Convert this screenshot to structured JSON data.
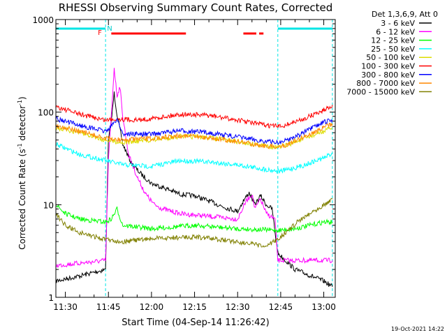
{
  "chart_data": {
    "type": "line",
    "title": "RHESSI Observing Summary Count Rates, Corrected",
    "xlabel": "Start Time (04-Sep-14 11:26:42)",
    "ylabel_main": "Corrected Count Rate (s",
    "ylabel_sup1": "-1",
    "ylabel_mid": " detector",
    "ylabel_sup2": "-1",
    "ylabel_end": ")",
    "yscale": "log",
    "ylim": [
      1,
      1000
    ],
    "xlim": [
      "11:26:42",
      "13:04:00"
    ],
    "grid": false,
    "legend_position": "right",
    "legend_header": "Det 1,3,6,9, Att 0",
    "x_ticks": [
      "11:30",
      "11:45",
      "12:00",
      "12:15",
      "12:30",
      "12:45",
      "13:00"
    ],
    "y_ticks": [
      "1",
      "10",
      "100",
      "1000"
    ],
    "timestamp": "19-Oct-2021 14:22",
    "flag_labels": {
      "f": "F",
      "n": "N"
    },
    "night_intervals": [
      [
        "11:26:42",
        "11:44:00"
      ],
      [
        "12:44:00",
        "13:03:00"
      ]
    ],
    "flare_intervals": [
      [
        "11:46:00",
        "12:12:00"
      ],
      [
        "12:32:00",
        "12:36:30"
      ],
      [
        "12:37:30",
        "12:39:00"
      ]
    ],
    "series": [
      {
        "name": "3 - 6 keV",
        "color": "#000000",
        "points": [
          [
            "11:26:42",
            1.5
          ],
          [
            "11:35",
            1.7
          ],
          [
            "11:44",
            2
          ],
          [
            "11:45",
            50
          ],
          [
            "11:46",
            80
          ],
          [
            "11:47",
            160
          ],
          [
            "11:48",
            95
          ],
          [
            "11:50",
            45
          ],
          [
            "11:53",
            28
          ],
          [
            "11:56",
            22
          ],
          [
            "12:00",
            17
          ],
          [
            "12:05",
            15
          ],
          [
            "12:10",
            13
          ],
          [
            "12:15",
            12.5
          ],
          [
            "12:20",
            11
          ],
          [
            "12:25",
            9.5
          ],
          [
            "12:30",
            8.5
          ],
          [
            "12:32",
            11
          ],
          [
            "12:34",
            13.5
          ],
          [
            "12:36",
            10
          ],
          [
            "12:38",
            12.5
          ],
          [
            "12:40",
            10
          ],
          [
            "12:42",
            9
          ],
          [
            "12:44",
            3
          ],
          [
            "12:50",
            2
          ],
          [
            "13:00",
            1.5
          ],
          [
            "13:03",
            1.3
          ]
        ]
      },
      {
        "name": "6 - 12 keV",
        "color": "#ff00ff",
        "points": [
          [
            "11:26:42",
            2.2
          ],
          [
            "11:44",
            2.5
          ],
          [
            "11:45",
            30
          ],
          [
            "11:46",
            90
          ],
          [
            "11:47",
            300
          ],
          [
            "11:48",
            150
          ],
          [
            "11:49",
            190
          ],
          [
            "11:50",
            90
          ],
          [
            "11:52",
            35
          ],
          [
            "11:55",
            20
          ],
          [
            "11:58",
            13
          ],
          [
            "12:01",
            10
          ],
          [
            "12:04",
            9
          ],
          [
            "12:07",
            8.5
          ],
          [
            "12:10",
            8
          ],
          [
            "12:20",
            7.5
          ],
          [
            "12:30",
            7
          ],
          [
            "12:33",
            11
          ],
          [
            "12:35",
            13
          ],
          [
            "12:36",
            9
          ],
          [
            "12:38",
            11.5
          ],
          [
            "12:40",
            8
          ],
          [
            "12:43",
            7
          ],
          [
            "12:44",
            2.5
          ],
          [
            "13:03",
            2.5
          ]
        ]
      },
      {
        "name": "12 - 25 keV",
        "color": "#00ff00",
        "points": [
          [
            "11:26:42",
            10
          ],
          [
            "11:30",
            8
          ],
          [
            "11:35",
            7
          ],
          [
            "11:44",
            6.5
          ],
          [
            "11:46",
            7
          ],
          [
            "11:48",
            9
          ],
          [
            "11:50",
            6
          ],
          [
            "12:00",
            5.5
          ],
          [
            "12:15",
            6
          ],
          [
            "12:30",
            5.5
          ],
          [
            "12:44",
            5.3
          ],
          [
            "12:50",
            5.5
          ],
          [
            "13:00",
            6.5
          ],
          [
            "13:03",
            6.5
          ]
        ]
      },
      {
        "name": "25 - 50 keV",
        "color": "#00ffff",
        "points": [
          [
            "11:26:42",
            45
          ],
          [
            "11:35",
            35
          ],
          [
            "11:44",
            30
          ],
          [
            "11:50",
            27
          ],
          [
            "12:00",
            26
          ],
          [
            "12:10",
            30
          ],
          [
            "12:20",
            29
          ],
          [
            "12:30",
            27
          ],
          [
            "12:40",
            24
          ],
          [
            "12:45",
            23
          ],
          [
            "12:52",
            26
          ],
          [
            "13:00",
            32
          ],
          [
            "13:03",
            36
          ]
        ]
      },
      {
        "name": "50 - 100 keV",
        "color": "#dddd00",
        "points": [
          [
            "11:26:42",
            68
          ],
          [
            "11:35",
            60
          ],
          [
            "11:44",
            50
          ],
          [
            "11:50",
            47
          ],
          [
            "12:00",
            50
          ],
          [
            "12:10",
            55
          ],
          [
            "12:20",
            53
          ],
          [
            "12:30",
            48
          ],
          [
            "12:40",
            43
          ],
          [
            "12:45",
            42
          ],
          [
            "12:52",
            50
          ],
          [
            "13:00",
            62
          ],
          [
            "13:03",
            68
          ]
        ]
      },
      {
        "name": "100 - 300 keV",
        "color": "#ff0000",
        "points": [
          [
            "11:26:42",
            115
          ],
          [
            "11:35",
            95
          ],
          [
            "11:44",
            82
          ],
          [
            "11:48",
            85
          ],
          [
            "11:55",
            82
          ],
          [
            "12:00",
            85
          ],
          [
            "12:10",
            95
          ],
          [
            "12:20",
            92
          ],
          [
            "12:30",
            82
          ],
          [
            "12:40",
            72
          ],
          [
            "12:45",
            70
          ],
          [
            "12:52",
            82
          ],
          [
            "13:00",
            105
          ],
          [
            "13:03",
            120
          ]
        ]
      },
      {
        "name": "300 - 800 keV",
        "color": "#0000ff",
        "points": [
          [
            "11:26:42",
            85
          ],
          [
            "11:35",
            72
          ],
          [
            "11:44",
            62
          ],
          [
            "11:46",
            70
          ],
          [
            "11:48",
            85
          ],
          [
            "11:50",
            58
          ],
          [
            "12:00",
            58
          ],
          [
            "12:10",
            63
          ],
          [
            "12:20",
            60
          ],
          [
            "12:30",
            54
          ],
          [
            "12:40",
            48
          ],
          [
            "12:45",
            47
          ],
          [
            "12:52",
            58
          ],
          [
            "13:00",
            78
          ],
          [
            "13:03",
            82
          ]
        ]
      },
      {
        "name": "800 - 7000 keV",
        "color": "#ff8800",
        "points": [
          [
            "11:26:42",
            72
          ],
          [
            "11:35",
            62
          ],
          [
            "11:44",
            52
          ],
          [
            "11:50",
            50
          ],
          [
            "12:00",
            52
          ],
          [
            "12:10",
            56
          ],
          [
            "12:20",
            53
          ],
          [
            "12:30",
            48
          ],
          [
            "12:40",
            43
          ],
          [
            "12:45",
            42
          ],
          [
            "12:52",
            52
          ],
          [
            "13:00",
            68
          ],
          [
            "13:03",
            75
          ]
        ]
      },
      {
        "name": "7000 - 15000 keV",
        "color": "#808000",
        "points": [
          [
            "11:26:42",
            8
          ],
          [
            "11:30",
            6
          ],
          [
            "11:35",
            5
          ],
          [
            "11:44",
            4.2
          ],
          [
            "11:50",
            4
          ],
          [
            "12:00",
            4.3
          ],
          [
            "12:15",
            4.5
          ],
          [
            "12:30",
            4
          ],
          [
            "12:40",
            3.5
          ],
          [
            "12:45",
            4.5
          ],
          [
            "12:52",
            7
          ],
          [
            "13:00",
            10
          ],
          [
            "13:03",
            11.5
          ]
        ]
      }
    ]
  }
}
